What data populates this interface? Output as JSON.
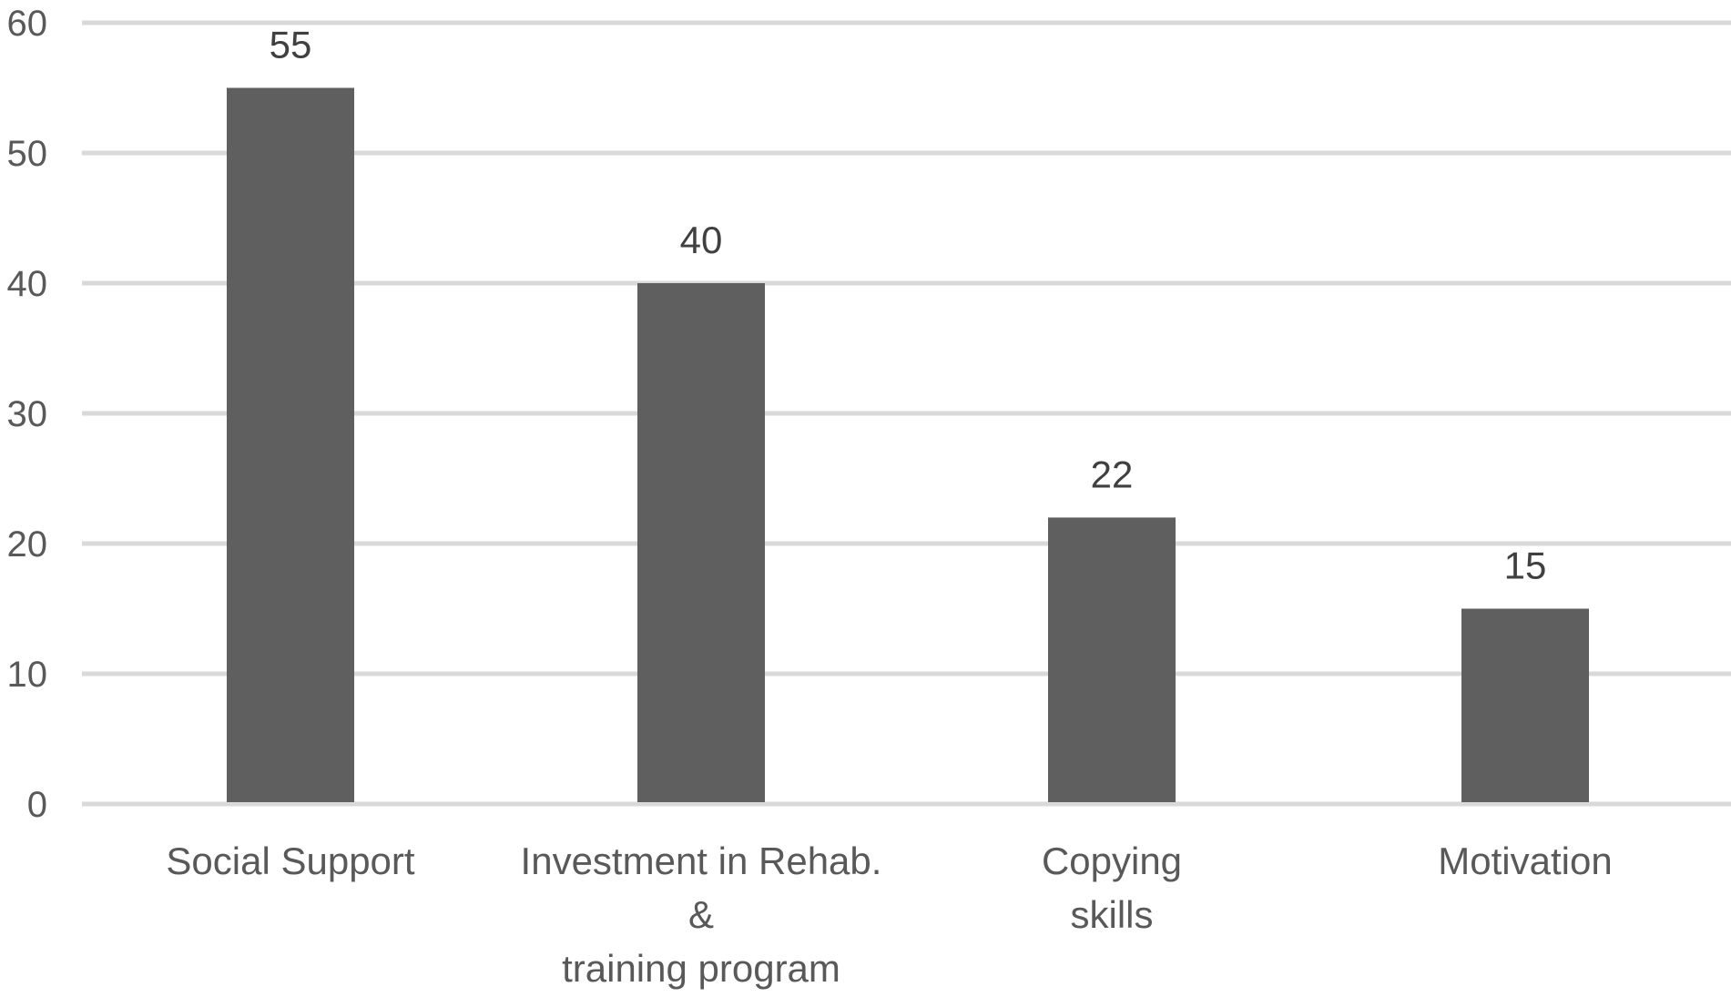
{
  "chart_data": {
    "type": "bar",
    "title": "",
    "xlabel": "",
    "ylabel": "",
    "categories": [
      [
        "Social Support"
      ],
      [
        "Investment in Rehab.",
        "&",
        "training program"
      ],
      [
        "Copying",
        "skills"
      ],
      [
        "Motivation"
      ]
    ],
    "values": [
      55,
      40,
      22,
      15
    ],
    "ylim": [
      0,
      60
    ],
    "yticks": [
      0,
      10,
      20,
      30,
      40,
      50,
      60
    ],
    "grid": true,
    "legend": "none",
    "bar_color": "#5f5f5f",
    "data_labels": [
      "55",
      "40",
      "22",
      "15"
    ]
  }
}
